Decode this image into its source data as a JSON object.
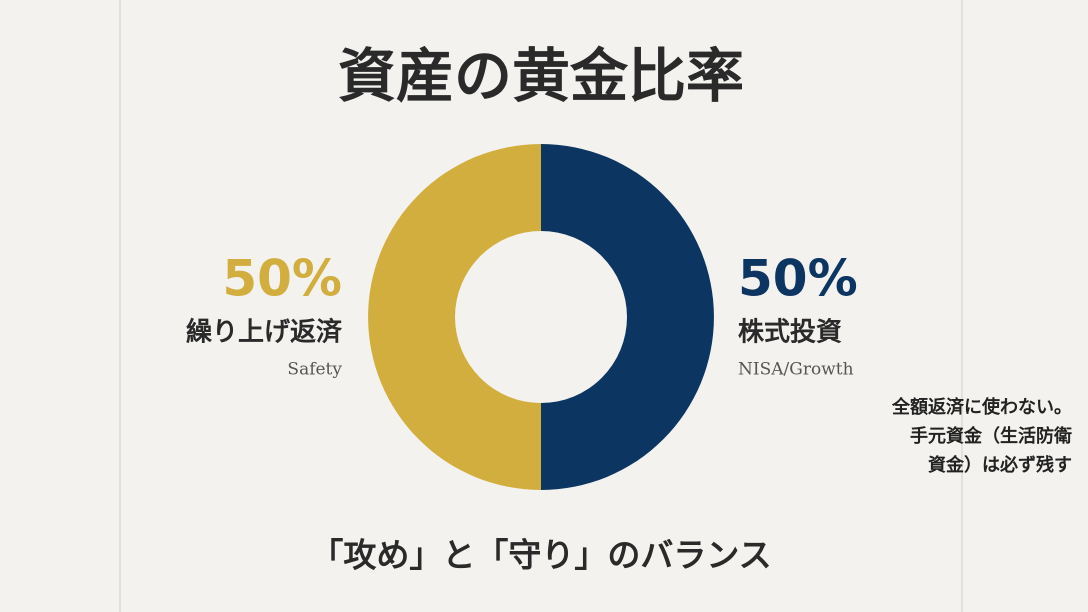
{
  "chart_data": {
    "type": "donut",
    "title": "資産の黄金比率",
    "categories": [
      "株式投資",
      "繰り上げ返済"
    ],
    "category_subtitles": [
      "NISA/Growth",
      "Safety"
    ],
    "values": [
      50,
      50
    ],
    "value_labels": [
      "50%",
      "50%"
    ],
    "colors": [
      "#0c3562",
      "#d1ae3e"
    ],
    "annotation": [
      "全額返済に使わない。",
      "手元資金（生活防衛",
      "資金）は必ず残す"
    ],
    "caption": "「攻め」と「守り」のバランス"
  }
}
